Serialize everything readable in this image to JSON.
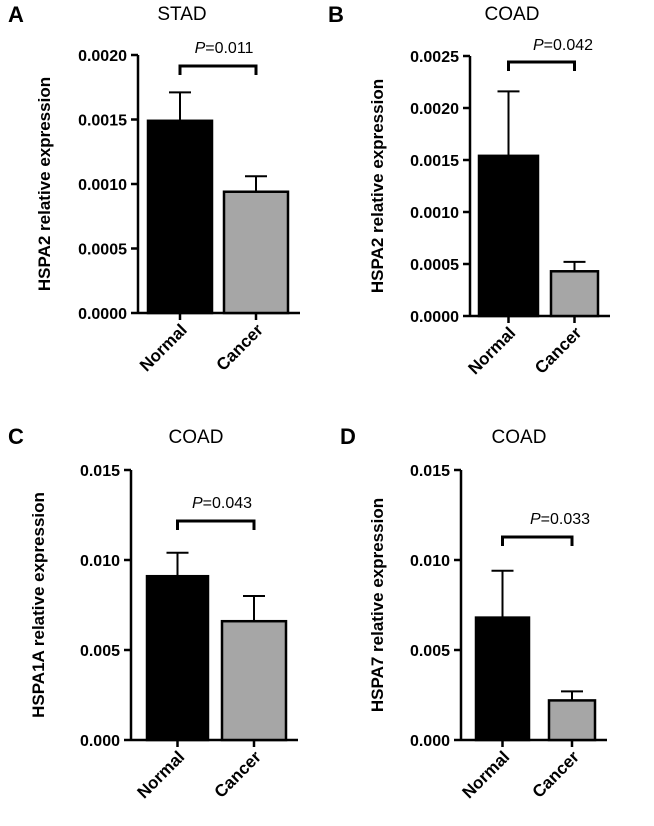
{
  "chart_data": [
    {
      "panel": "A",
      "type": "bar",
      "title": "STAD",
      "ylabel": "HSPA2 relative expression",
      "categories": [
        "Normal",
        "Cancer"
      ],
      "values": [
        0.00149,
        0.00094
      ],
      "errors": [
        0.00022,
        0.00012
      ],
      "colors": [
        "#000000",
        "#a6a6a6"
      ],
      "ylim": [
        0,
        0.002
      ],
      "yticks": [
        "0.0000",
        "0.0005",
        "0.0010",
        "0.0015",
        "0.0020"
      ],
      "annotation": {
        "prefix": "P",
        "text": "=0.011"
      }
    },
    {
      "panel": "B",
      "type": "bar",
      "title": "COAD",
      "ylabel": "HSPA2 relative expression",
      "categories": [
        "Normal",
        "Cancer"
      ],
      "values": [
        0.00154,
        0.00043
      ],
      "errors": [
        0.00062,
        9e-05
      ],
      "colors": [
        "#000000",
        "#a6a6a6"
      ],
      "ylim": [
        0,
        0.0025
      ],
      "yticks": [
        "0.0000",
        "0.0005",
        "0.0010",
        "0.0015",
        "0.0020",
        "0.0025"
      ],
      "annotation": {
        "prefix": "P",
        "text": "=0.042"
      }
    },
    {
      "panel": "C",
      "type": "bar",
      "title": "COAD",
      "ylabel": "HSPA1A relative expression",
      "categories": [
        "Normal",
        "Cancer"
      ],
      "values": [
        0.0091,
        0.0066
      ],
      "errors": [
        0.0013,
        0.0014
      ],
      "colors": [
        "#000000",
        "#a6a6a6"
      ],
      "ylim": [
        0,
        0.015
      ],
      "yticks": [
        "0.000",
        "0.005",
        "0.010",
        "0.015"
      ],
      "annotation": {
        "prefix": "P",
        "text": "=0.043"
      }
    },
    {
      "panel": "D",
      "type": "bar",
      "title": "COAD",
      "ylabel": "HSPA7 relative expression",
      "categories": [
        "Normal",
        "Cancer"
      ],
      "values": [
        0.0068,
        0.0022
      ],
      "errors": [
        0.0026,
        0.0005
      ],
      "colors": [
        "#000000",
        "#a6a6a6"
      ],
      "ylim": [
        0,
        0.015
      ],
      "yticks": [
        "0.000",
        "0.005",
        "0.010",
        "0.015"
      ],
      "annotation": {
        "prefix": "P",
        "text": "=0.033"
      }
    }
  ]
}
